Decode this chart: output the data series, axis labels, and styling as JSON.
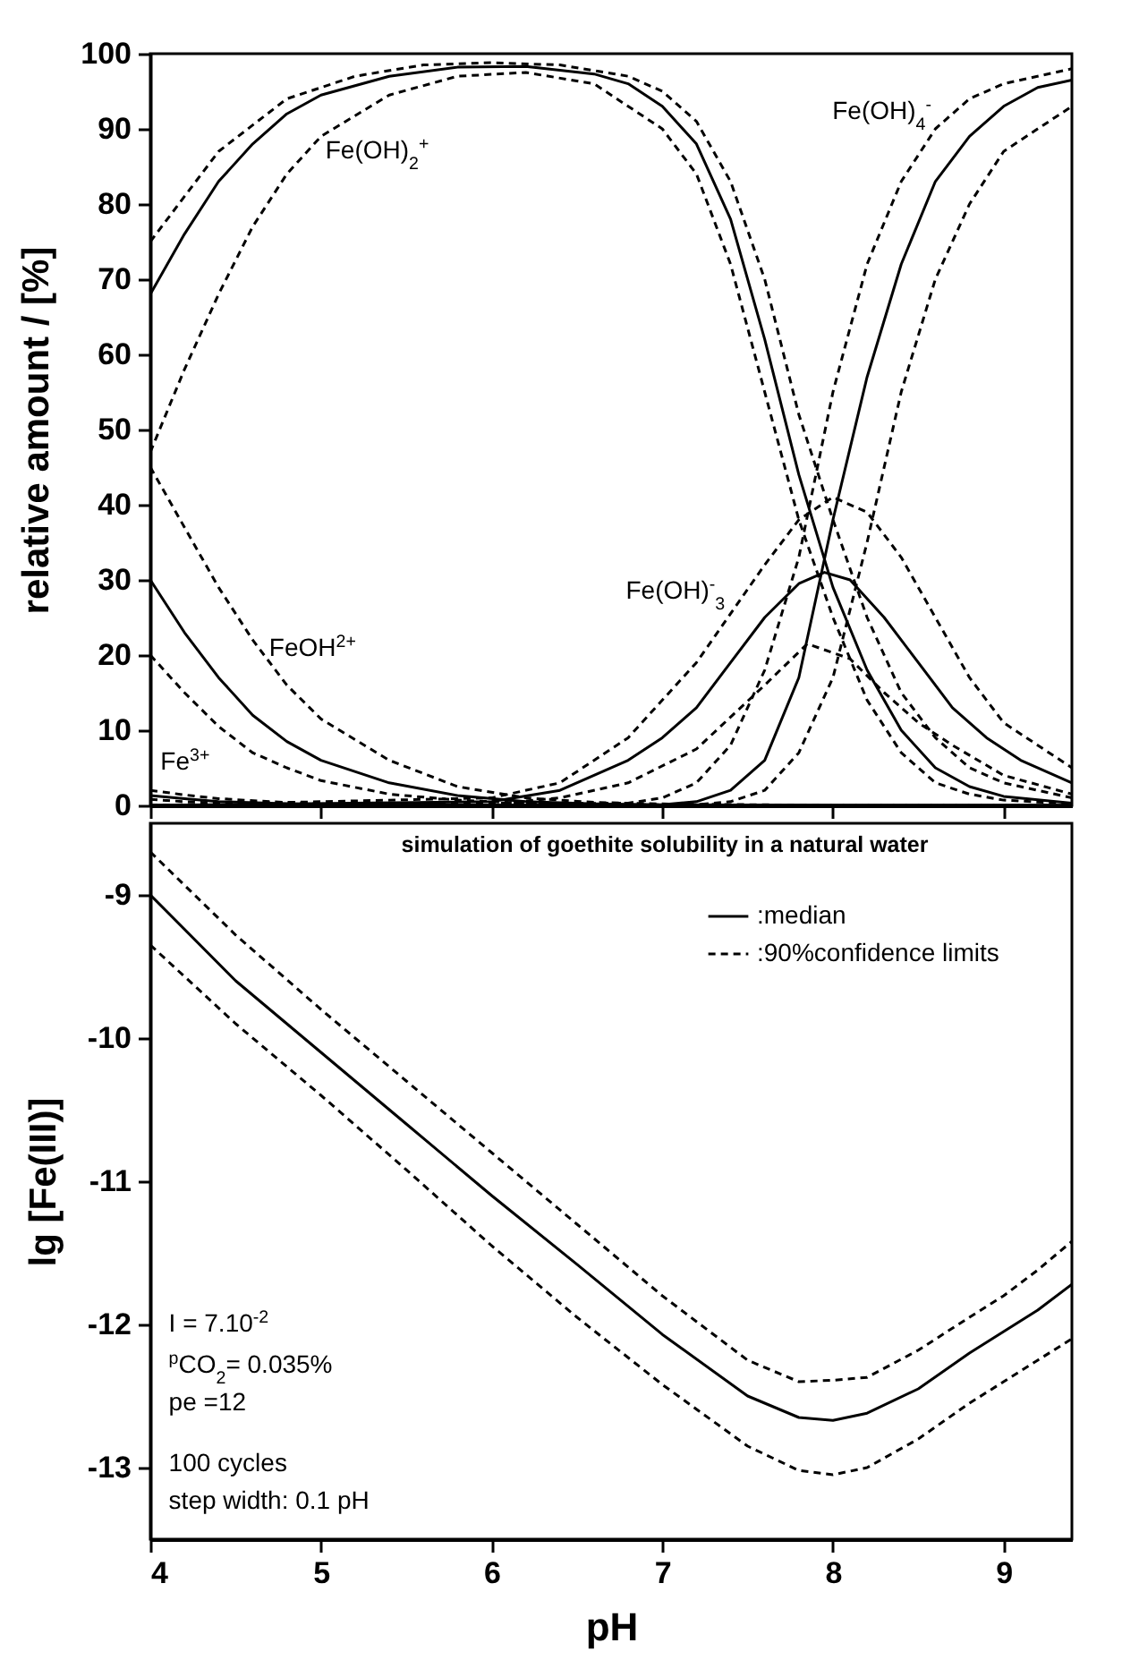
{
  "chart_data": [
    {
      "type": "line",
      "ylabel": "relative amount / [%]",
      "xlim": [
        4,
        9.4
      ],
      "xticks": [
        4,
        5,
        6,
        7,
        8,
        9
      ],
      "ylim": [
        0,
        100
      ],
      "yticks": [
        0,
        10,
        20,
        30,
        40,
        50,
        60,
        70,
        80,
        90,
        100
      ],
      "tick_labels": "y",
      "series": [
        {
          "color": "#000000",
          "line_style": "solid",
          "x": [
            4,
            4.2,
            4.4,
            4.7,
            5
          ],
          "values": [
            1.3,
            0.9,
            0.5,
            0.3,
            0.1
          ]
        },
        {
          "color": "#000000",
          "line_style": "dashed",
          "x": [
            4,
            4.2,
            4.4,
            4.7,
            5
          ],
          "values": [
            2,
            1.4,
            0.9,
            0.5,
            0.2
          ]
        },
        {
          "color": "#000000",
          "line_style": "dashed",
          "x": [
            4,
            4.2,
            4.4,
            4.7
          ],
          "values": [
            0.8,
            0.5,
            0.3,
            0.2
          ]
        },
        {
          "color": "#000000",
          "line_style": "solid",
          "x": [
            4,
            4.2,
            4.4,
            4.6,
            4.8,
            5,
            5.4,
            5.8,
            6.2,
            6.6,
            7,
            8,
            9.4
          ],
          "values": [
            30,
            23,
            17,
            12,
            8.5,
            6,
            3,
            1.3,
            0.5,
            0.2,
            0.1,
            0,
            0
          ]
        },
        {
          "color": "#000000",
          "line_style": "dashed",
          "x": [
            4,
            4.2,
            4.4,
            4.6,
            4.8,
            5,
            5.4,
            5.8,
            6.2,
            6.6,
            7,
            8,
            9.4
          ],
          "values": [
            45,
            37,
            29,
            22,
            16,
            11.5,
            6,
            2.5,
            1,
            0.4,
            0.2,
            0,
            0
          ]
        },
        {
          "color": "#000000",
          "line_style": "dashed",
          "x": [
            4,
            4.2,
            4.4,
            4.6,
            4.8,
            5,
            5.4,
            5.8,
            6.2,
            6.6,
            7,
            8,
            9.4
          ],
          "values": [
            20,
            15,
            10.5,
            7,
            5,
            3.3,
            1.5,
            0.7,
            0.3,
            0.1,
            0,
            0,
            0
          ]
        },
        {
          "color": "#000000",
          "line_style": "solid",
          "x": [
            4,
            4.2,
            4.4,
            4.6,
            4.8,
            5,
            5.4,
            5.8,
            6.2,
            6.6,
            6.8,
            7,
            7.2,
            7.4,
            7.6,
            7.8,
            8,
            8.2,
            8.4,
            8.6,
            8.8,
            9,
            9.4
          ],
          "values": [
            68,
            76,
            83,
            88,
            92,
            94.5,
            97,
            98.2,
            98.3,
            97.3,
            96,
            93,
            88,
            78,
            62,
            44,
            29,
            18,
            10,
            5,
            2.5,
            1.2,
            0.3
          ]
        },
        {
          "color": "#000000",
          "line_style": "dashed",
          "x": [
            4,
            4.4,
            4.8,
            5.2,
            5.6,
            6,
            6.4,
            6.8,
            7,
            7.2,
            7.4,
            7.6,
            7.8,
            8,
            8.2,
            8.4,
            8.6,
            8.8,
            9,
            9.4
          ],
          "values": [
            75,
            87,
            94,
            97,
            98.5,
            98.8,
            98.5,
            97,
            95,
            91,
            83,
            70,
            52,
            38,
            25,
            15,
            9,
            5,
            3,
            1
          ]
        },
        {
          "color": "#000000",
          "line_style": "dashed",
          "x": [
            4,
            4.2,
            4.4,
            4.6,
            4.8,
            5,
            5.4,
            5.8,
            6.2,
            6.6,
            7,
            7.2,
            7.4,
            7.6,
            7.8,
            8,
            8.2,
            8.4,
            8.6,
            8.8,
            9,
            9.4
          ],
          "values": [
            47,
            58,
            68,
            77,
            84,
            89,
            94.5,
            97,
            97.5,
            96,
            90,
            84,
            72,
            55,
            38,
            25,
            14,
            7,
            3,
            1.5,
            0.7,
            0.2
          ]
        },
        {
          "color": "#000000",
          "line_style": "solid",
          "x": [
            4,
            6,
            6.4,
            6.8,
            7,
            7.2,
            7.4,
            7.6,
            7.8,
            7.95,
            8.1,
            8.3,
            8.5,
            8.7,
            8.9,
            9.1,
            9.4
          ],
          "values": [
            0,
            0.5,
            2,
            6,
            9,
            13,
            19,
            25,
            29.5,
            31,
            30,
            25,
            19,
            13,
            9,
            6,
            3
          ]
        },
        {
          "color": "#000000",
          "line_style": "dashed",
          "x": [
            4,
            6,
            6.4,
            6.8,
            7.2,
            7.6,
            7.8,
            8,
            8.2,
            8.4,
            8.6,
            8.8,
            9,
            9.4
          ],
          "values": [
            0,
            1,
            3,
            9,
            19,
            32,
            38,
            41,
            39,
            33,
            25,
            17,
            11,
            5
          ]
        },
        {
          "color": "#000000",
          "line_style": "dashed",
          "x": [
            4,
            6,
            6.4,
            6.8,
            7.2,
            7.6,
            7.85,
            8.1,
            8.3,
            8.5,
            8.7,
            9,
            9.4
          ],
          "values": [
            0,
            0.2,
            1,
            3,
            7.5,
            16,
            21.5,
            19.5,
            15,
            11,
            8,
            4,
            1.5
          ]
        },
        {
          "color": "#000000",
          "line_style": "solid",
          "x": [
            4,
            7,
            7.2,
            7.4,
            7.6,
            7.8,
            8,
            8.2,
            8.4,
            8.6,
            8.8,
            9,
            9.2,
            9.4
          ],
          "values": [
            0,
            0.1,
            0.5,
            2,
            6,
            17,
            38,
            57,
            72,
            83,
            89,
            93,
            95.5,
            96.5
          ]
        },
        {
          "color": "#000000",
          "line_style": "dashed",
          "x": [
            4,
            6.8,
            7,
            7.2,
            7.4,
            7.6,
            7.8,
            8,
            8.2,
            8.4,
            8.6,
            8.8,
            9,
            9.4
          ],
          "values": [
            0,
            0.3,
            1,
            3,
            8,
            18,
            33,
            55,
            72,
            83,
            90,
            94,
            96,
            98
          ]
        },
        {
          "color": "#000000",
          "line_style": "dashed",
          "x": [
            4,
            7.2,
            7.4,
            7.6,
            7.8,
            8,
            8.2,
            8.4,
            8.6,
            8.8,
            9,
            9.4
          ],
          "values": [
            0,
            0.1,
            0.5,
            2,
            7,
            17,
            35,
            55,
            70,
            80,
            87,
            93
          ]
        }
      ],
      "annotations": [
        "Fe(OH)$_{2}$$^{+}$",
        "Fe(OH)$_{4}$$^{-}$",
        "Fe(OH)$^{-}$$_{3}$",
        "FeOH$^{2+}$",
        "Fe$^{3+}$"
      ]
    },
    {
      "type": "line",
      "title": "simulation of goethite solubility in a natural water",
      "xlabel": "pH",
      "ylabel": "lg [Fe(III)]",
      "xlim": [
        4,
        9.4
      ],
      "xticks": [
        4,
        5,
        6,
        7,
        8,
        9
      ],
      "ylim": [
        -13.5,
        -8.5
      ],
      "yticks": [
        -9,
        -10,
        -11,
        -12,
        -13
      ],
      "legend": "top right",
      "x": [
        4,
        4.5,
        5,
        5.5,
        6,
        6.5,
        7,
        7.5,
        7.8,
        8,
        8.2,
        8.5,
        8.8,
        9,
        9.2,
        9.4
      ],
      "series": [
        {
          "name": ":median",
          "color": "#000000",
          "line_style": "solid",
          "values": [
            -9,
            -9.6,
            -10.1,
            -10.6,
            -11.1,
            -11.58,
            -12.07,
            -12.5,
            -12.65,
            -12.67,
            -12.62,
            -12.45,
            -12.2,
            -12.05,
            -11.9,
            -11.72
          ]
        },
        {
          "name": ":90%confidence limits",
          "color": "#000000",
          "line_style": "dashed",
          "values": [
            -8.7,
            -9.28,
            -9.8,
            -10.3,
            -10.8,
            -11.3,
            -11.8,
            -12.25,
            -12.4,
            -12.39,
            -12.37,
            -12.18,
            -11.95,
            -11.8,
            -11.62,
            -11.42
          ]
        },
        {
          "color": "#000000",
          "line_style": "dashed",
          "values": [
            -9.35,
            -9.9,
            -10.4,
            -10.92,
            -11.45,
            -11.95,
            -12.42,
            -12.85,
            -13.02,
            -13.05,
            -13.0,
            -12.8,
            -12.55,
            -12.4,
            -12.25,
            -12.1
          ]
        }
      ],
      "annotations": [
        "I = 7.10$^{-2}$",
        "$^{p}$CO$_{2}$= 0.035%",
        "pe =12",
        "100 cycles",
        "step width: 0.1 pH"
      ]
    }
  ]
}
